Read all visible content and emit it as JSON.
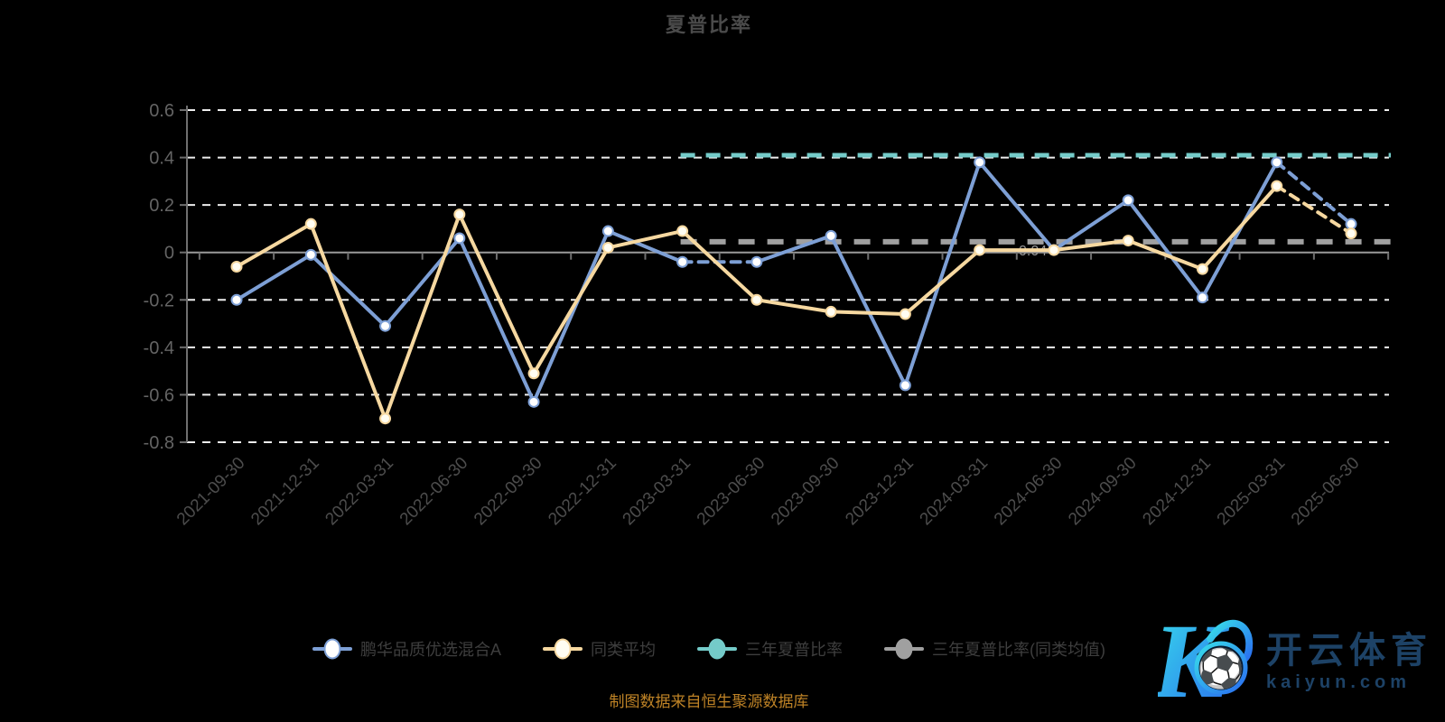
{
  "title": "夏普比率",
  "caption": "制图数据来自恒生聚源数据库",
  "watermark": {
    "brand": "开云体育",
    "domain": "kaiyun.com",
    "logo_letter": "K",
    "ball_icon": "soccer-ball",
    "logo_gradient": [
      "#38dfea",
      "#2a6cf0"
    ],
    "text_color": "#1d4266"
  },
  "annotation": {
    "label": "0.04"
  },
  "colors": {
    "background": "#000000",
    "grid": "#ededed",
    "zero_line": "#9a9a9a",
    "axis": "#6f6f6f",
    "y_label": "#646464",
    "x_label": "#4c4c4c",
    "title": "#4a4a4a",
    "legend_text": "#3e3e3e",
    "caption": "#bf8326"
  },
  "chart_data": {
    "type": "line",
    "title": "夏普比率",
    "xlabel": "",
    "ylabel": "",
    "ylim": [
      -0.8,
      0.6
    ],
    "yticks": [
      0.6,
      0.4,
      0.2,
      0,
      -0.2,
      -0.4,
      -0.6,
      -0.8
    ],
    "ytick_labels": [
      "0.6",
      "0.4",
      "0.2",
      "0",
      "-0.2",
      "-0.4",
      "-0.6",
      "-0.8"
    ],
    "grid": "horizontal-dashed",
    "legend_position": "bottom",
    "categories": [
      "2021-09-30",
      "2021-12-31",
      "2022-03-31",
      "2022-06-30",
      "2022-09-30",
      "2022-12-31",
      "2023-03-31",
      "2023-06-30",
      "2023-09-30",
      "2023-12-31",
      "2024-03-31",
      "2024-06-30",
      "2024-09-30",
      "2024-12-31",
      "2025-03-31",
      "2025-06-30"
    ],
    "series": [
      {
        "name": "鹏华品质优选混合A",
        "type": "line-markers",
        "color": "#7d9fd5",
        "marker_fill": "#ffffff",
        "values": [
          -0.2,
          -0.01,
          -0.31,
          0.06,
          -0.63,
          0.09,
          -0.04,
          -0.04,
          0.07,
          -0.56,
          0.38,
          0.01,
          0.22,
          -0.19,
          0.38,
          0.12
        ],
        "dashed_segments": [
          [
            6,
            7
          ],
          [
            14,
            15
          ]
        ]
      },
      {
        "name": "同类平均",
        "type": "line-markers",
        "color": "#f6d8a0",
        "marker_fill": "#fffdf2",
        "values": [
          -0.06,
          0.12,
          -0.7,
          0.16,
          -0.51,
          0.02,
          0.09,
          -0.2,
          -0.25,
          -0.26,
          0.01,
          0.01,
          0.05,
          -0.07,
          0.28,
          0.08
        ],
        "dashed_segments": [
          [
            14,
            15
          ]
        ]
      },
      {
        "name": "三年夏普比率",
        "type": "horizontal-dashed-line",
        "color": "#74cbc9",
        "value": 0.41,
        "start_category_index": 6,
        "extends_to_right_edge": true
      },
      {
        "name": "三年夏普比率(同类均值)",
        "type": "horizontal-dashed-line",
        "color": "#a0a0a0",
        "value": 0.045,
        "start_category_index": 6,
        "extends_to_right_edge": true
      }
    ]
  }
}
